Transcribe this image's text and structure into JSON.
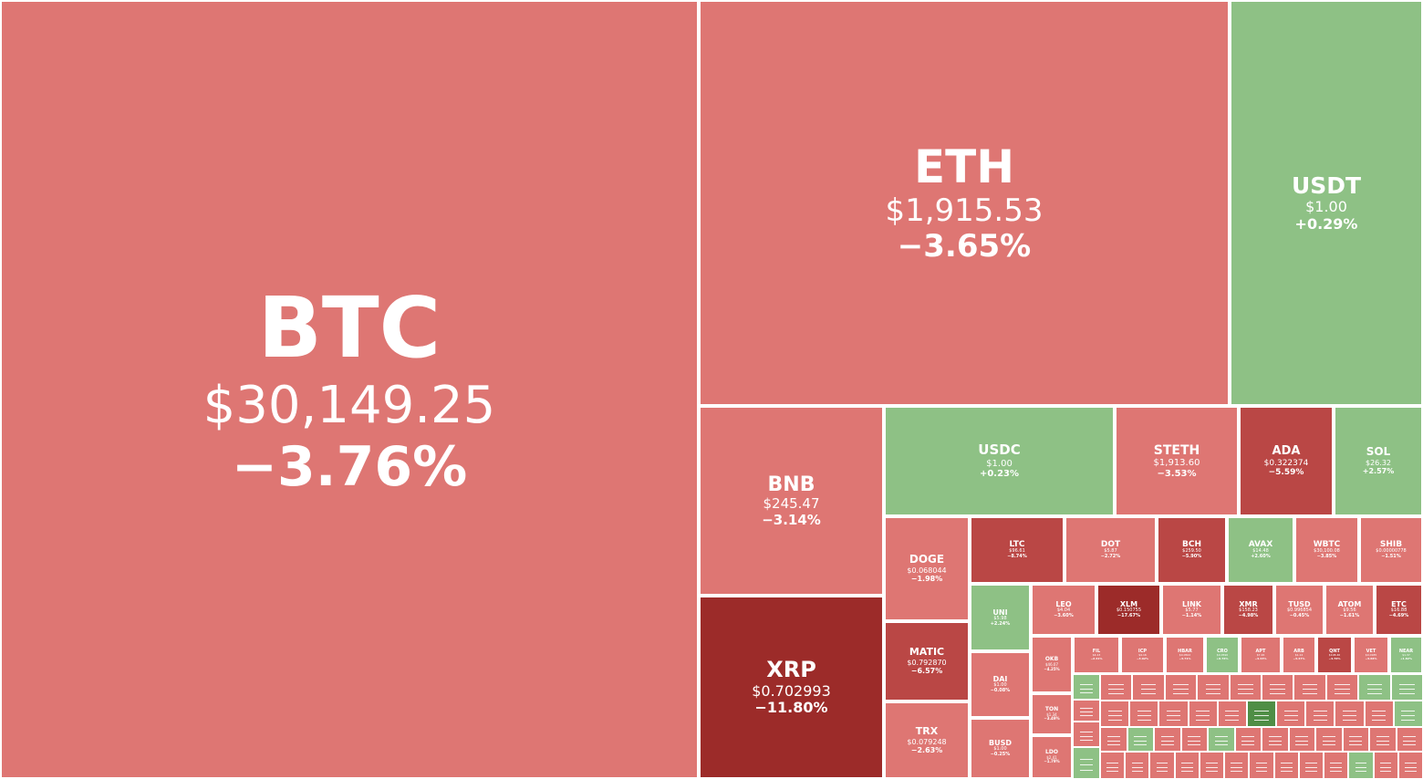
{
  "chart_data": {
    "type": "treemap",
    "colors": {
      "pos_light": "#8ec185",
      "pos_dark": "#4f8e46",
      "neg_light": "#de7673",
      "neg_mid": "#ba4745",
      "neg_dark": "#9c2b29"
    },
    "tiles": [
      {
        "symbol": "BTC",
        "price": "$30,149.25",
        "change": "−3.76%",
        "value": -3.76
      },
      {
        "symbol": "ETH",
        "price": "$1,915.53",
        "change": "−3.65%",
        "value": -3.65
      },
      {
        "symbol": "USDT",
        "price": "$1.00",
        "change": "+0.29%",
        "value": 0.29
      },
      {
        "symbol": "BNB",
        "price": "$245.47",
        "change": "−3.14%",
        "value": -3.14
      },
      {
        "symbol": "XRP",
        "price": "$0.702993",
        "change": "−11.80%",
        "value": -11.8
      },
      {
        "symbol": "USDC",
        "price": "$1.00",
        "change": "+0.23%",
        "value": 0.23
      },
      {
        "symbol": "STETH",
        "price": "$1,913.60",
        "change": "−3.53%",
        "value": -3.53
      },
      {
        "symbol": "ADA",
        "price": "$0.322374",
        "change": "−5.59%",
        "value": -5.59
      },
      {
        "symbol": "SOL",
        "price": "$26.32",
        "change": "+2.57%",
        "value": 2.57
      },
      {
        "symbol": "DOGE",
        "price": "$0.068044",
        "change": "−1.98%",
        "value": -1.98
      },
      {
        "symbol": "MATIC",
        "price": "$0.792870",
        "change": "−6.57%",
        "value": -6.57
      },
      {
        "symbol": "TRX",
        "price": "$0.079248",
        "change": "−2.63%",
        "value": -2.63
      },
      {
        "symbol": "LTC",
        "price": "$96.61",
        "change": "−8.74%",
        "value": -8.74
      },
      {
        "symbol": "DOT",
        "price": "$5.87",
        "change": "−2.72%",
        "value": -2.72
      },
      {
        "symbol": "BCH",
        "price": "$259.50",
        "change": "−5.90%",
        "value": -5.9
      },
      {
        "symbol": "AVAX",
        "price": "$14.48",
        "change": "+2.60%",
        "value": 2.6
      },
      {
        "symbol": "WBTC",
        "price": "$30,100.08",
        "change": "−3.85%",
        "value": -3.85
      },
      {
        "symbol": "SHIB",
        "price": "$0.00000778",
        "change": "−1.51%",
        "value": -1.51
      },
      {
        "symbol": "UNI",
        "price": "$5.98",
        "change": "+2.24%",
        "value": 2.24
      },
      {
        "symbol": "LEO",
        "price": "$4.04",
        "change": "−3.60%",
        "value": -3.6
      },
      {
        "symbol": "XLM",
        "price": "$0.150755",
        "change": "−17.67%",
        "value": -17.67
      },
      {
        "symbol": "LINK",
        "price": "$5.77",
        "change": "−1.14%",
        "value": -1.14
      },
      {
        "symbol": "XMR",
        "price": "$158.23",
        "change": "−4.98%",
        "value": -4.98
      },
      {
        "symbol": "TUSD",
        "price": "$0.996854",
        "change": "−0.45%",
        "value": -0.45
      },
      {
        "symbol": "ATOM",
        "price": "$9.56",
        "change": "−1.61%",
        "value": -1.61
      },
      {
        "symbol": "ETC",
        "price": "$16.88",
        "change": "−4.69%",
        "value": -4.69
      },
      {
        "symbol": "DAI",
        "price": "$1.00",
        "change": "−0.08%",
        "value": -0.08
      },
      {
        "symbol": "BUSD",
        "price": "$1.00",
        "change": "−0.25%",
        "value": -0.25
      },
      {
        "symbol": "OKB",
        "price": "$46.07",
        "change": "−4.25%",
        "value": -4.25
      },
      {
        "symbol": "TON",
        "price": "$1.34",
        "change": "−3.49%",
        "value": -3.49
      },
      {
        "symbol": "LDO",
        "price": "$2.41",
        "change": "−1.79%",
        "value": -1.79
      },
      {
        "symbol": "FIL",
        "price": "$4.13",
        "change": "−2.41%",
        "value": -2.41
      },
      {
        "symbol": "ICP",
        "price": "$4.16",
        "change": "−3.02%",
        "value": -3.02
      },
      {
        "symbol": "HBAR",
        "price": "$0.0502",
        "change": "−3.71%",
        "value": -3.71
      },
      {
        "symbol": "CRO",
        "price": "$0.0590",
        "change": "+0.76%",
        "value": 0.76
      },
      {
        "symbol": "APT",
        "price": "$7.26",
        "change": "−4.43%",
        "value": -4.43
      },
      {
        "symbol": "ARB",
        "price": "$1.12",
        "change": "−3.47%",
        "value": -3.47
      },
      {
        "symbol": "QNT",
        "price": "$108.46",
        "change": "−4.70%",
        "value": -4.7
      },
      {
        "symbol": "VET",
        "price": "$0.0185",
        "change": "−3.66%",
        "value": -3.66
      },
      {
        "symbol": "NEAR",
        "price": "$1.37",
        "change": "+1.82%",
        "value": 1.82
      }
    ],
    "micro_colors": [
      "p",
      "n",
      "n",
      "p",
      "n",
      "n",
      "n",
      "n",
      "n",
      "n",
      "n",
      "n",
      "p",
      "p",
      "n",
      "n",
      "n",
      "n",
      "n",
      "d",
      "n",
      "n",
      "n",
      "n",
      "p",
      "n",
      "p",
      "n",
      "n",
      "p",
      "n",
      "n",
      "n",
      "n",
      "n",
      "n",
      "n",
      "n",
      "n",
      "n",
      "n",
      "n",
      "n",
      "n",
      "n",
      "n",
      "n",
      "p",
      "n",
      "n",
      "n",
      "n",
      "p",
      "n",
      "p",
      "n",
      "n",
      "n",
      "n",
      "n",
      "n",
      "n",
      "n",
      "n",
      "n",
      "n",
      "n",
      "n",
      "n",
      "n",
      "n",
      "n",
      "n",
      "n",
      "n",
      "n",
      "n",
      "n",
      "n",
      "n",
      "n",
      "n",
      "p",
      "n",
      "n",
      "p",
      "n",
      "n",
      "n",
      "n",
      "n",
      "p",
      "p",
      "n",
      "p",
      "n",
      "p",
      "n",
      "n",
      "n",
      "n",
      "n",
      "n",
      "n",
      "n",
      "n",
      "n",
      "n",
      "n",
      "n",
      "n",
      "n",
      "p",
      "n",
      "p",
      "p",
      "p",
      "n",
      "n",
      "n",
      "n",
      "n",
      "n",
      "n",
      "n",
      "n",
      "n",
      "n",
      "n",
      "n",
      "n",
      "n",
      "n",
      "n",
      "n",
      "n",
      "n",
      "n",
      "n",
      "n",
      "n",
      "n",
      "n",
      "n",
      "n",
      "n",
      "n",
      "n",
      "n",
      "n",
      "n",
      "n",
      "n",
      "n",
      "n",
      "n",
      "n",
      "n",
      "n",
      "n",
      "n",
      "n",
      "n",
      "n",
      "n",
      "n",
      "n",
      "n",
      "n",
      "n",
      "n",
      "n",
      "n",
      "n",
      "n",
      "n",
      "n",
      "n",
      "n",
      "n",
      "n",
      "n",
      "n",
      "n",
      "n",
      "n",
      "n",
      "n",
      "n",
      "n"
    ]
  }
}
